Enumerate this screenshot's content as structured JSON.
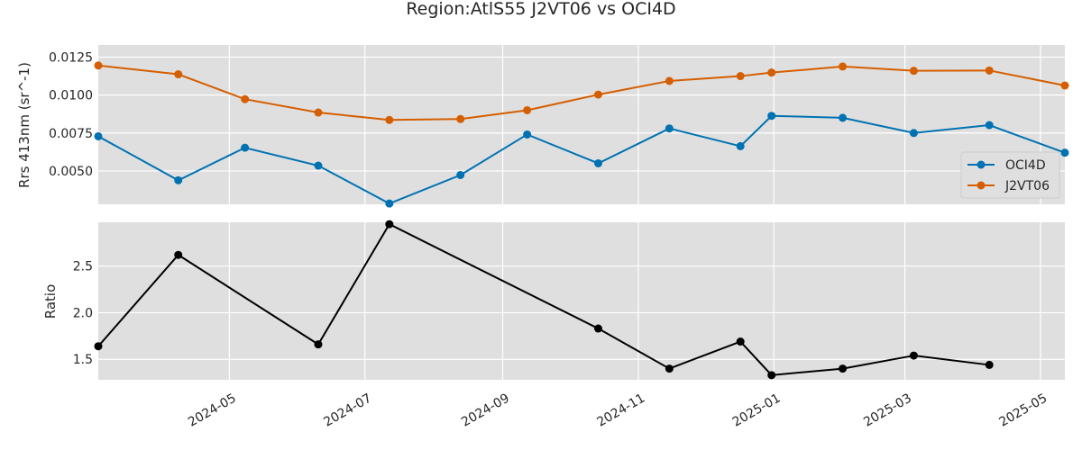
{
  "chart_data": {
    "title": "Region:AtlS55 J2VT06 vs OCI4D",
    "type": "line",
    "x_ticks": [
      "2024-05",
      "2024-07",
      "2024-09",
      "2024-11",
      "2025-01",
      "2025-03",
      "2025-05"
    ],
    "xlim": [
      "2024-03-03",
      "2025-05-12"
    ],
    "grid": true,
    "panels": [
      {
        "ylabel": "Rrs 413nm (sr^-1)",
        "ylim": [
          0.0028,
          0.0133
        ],
        "y_ticks": [
          "0.0050",
          "0.0075",
          "0.0100",
          "0.0125"
        ],
        "legend_position": "right",
        "series": [
          {
            "name": "OCI4D",
            "color": "#0072b2",
            "points": [
              [
                "2024-03-03",
                0.00728
              ],
              [
                "2024-04-08",
                0.00438
              ],
              [
                "2024-05-08",
                0.00653
              ],
              [
                "2024-06-10",
                0.00535
              ],
              [
                "2024-07-12",
                0.00285
              ],
              [
                "2024-08-13",
                0.00473
              ],
              [
                "2024-09-12",
                0.0074
              ],
              [
                "2024-10-14",
                0.0055
              ],
              [
                "2024-11-15",
                0.0078
              ],
              [
                "2024-12-17",
                0.00663
              ],
              [
                "2024-12-31",
                0.00863
              ],
              [
                "2025-02-01",
                0.0085
              ],
              [
                "2025-03-05",
                0.0075
              ],
              [
                "2025-04-08",
                0.00802
              ],
              [
                "2025-05-12",
                0.0062
              ]
            ]
          },
          {
            "name": "J2VT06",
            "color": "#d55e00",
            "points": [
              [
                "2024-03-03",
                0.01195
              ],
              [
                "2024-04-08",
                0.01137
              ],
              [
                "2024-05-08",
                0.00973
              ],
              [
                "2024-06-10",
                0.00885
              ],
              [
                "2024-07-12",
                0.00836
              ],
              [
                "2024-08-13",
                0.00842
              ],
              [
                "2024-09-12",
                0.009
              ],
              [
                "2024-10-14",
                0.01003
              ],
              [
                "2024-11-15",
                0.01093
              ],
              [
                "2024-12-17",
                0.01125
              ],
              [
                "2024-12-31",
                0.01148
              ],
              [
                "2025-02-01",
                0.01188
              ],
              [
                "2025-03-05",
                0.0116
              ],
              [
                "2025-04-08",
                0.01162
              ],
              [
                "2025-05-12",
                0.01063
              ]
            ]
          }
        ]
      },
      {
        "ylabel": "Ratio",
        "ylim": [
          1.28,
          2.97
        ],
        "y_ticks": [
          "1.5",
          "2.0",
          "2.5"
        ],
        "series": [
          {
            "name": "",
            "color": "#000000",
            "points": [
              [
                "2024-03-03",
                1.64
              ],
              [
                "2024-04-08",
                2.62
              ],
              [
                "2024-06-10",
                1.66
              ],
              [
                "2024-07-12",
                2.95
              ],
              [
                "2024-10-14",
                1.83
              ],
              [
                "2024-11-15",
                1.4
              ],
              [
                "2024-12-17",
                1.69
              ],
              [
                "2024-12-31",
                1.33
              ],
              [
                "2025-02-01",
                1.4
              ],
              [
                "2025-03-05",
                1.54
              ],
              [
                "2025-04-08",
                1.44
              ]
            ]
          }
        ]
      }
    ]
  }
}
